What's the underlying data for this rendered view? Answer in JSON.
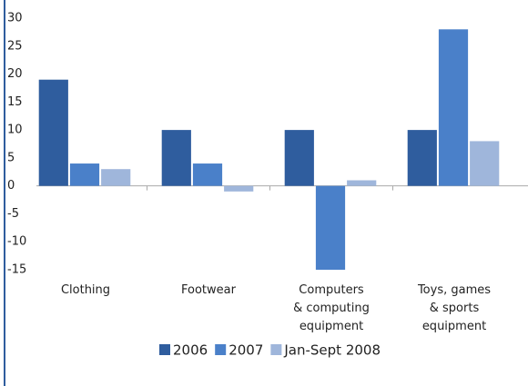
{
  "chart_data": {
    "type": "bar",
    "categories": [
      "Clothing",
      "Footwear",
      "Computers\n& computing\nequipment",
      "Toys, games\n& sports\nequipment"
    ],
    "series": [
      {
        "name": "2006",
        "color": "#2f5d9e",
        "values": [
          19,
          10,
          10,
          10
        ]
      },
      {
        "name": "2007",
        "color": "#4a80c9",
        "values": [
          4,
          4,
          -15,
          28
        ]
      },
      {
        "name": "Jan-Sept 2008",
        "color": "#9fb6db",
        "values": [
          3,
          -1,
          1,
          8
        ]
      }
    ],
    "ylim": [
      -15,
      30
    ],
    "yticks": [
      -15,
      -10,
      -5,
      0,
      5,
      10,
      15,
      20,
      25,
      30
    ],
    "legend": "bottom"
  }
}
